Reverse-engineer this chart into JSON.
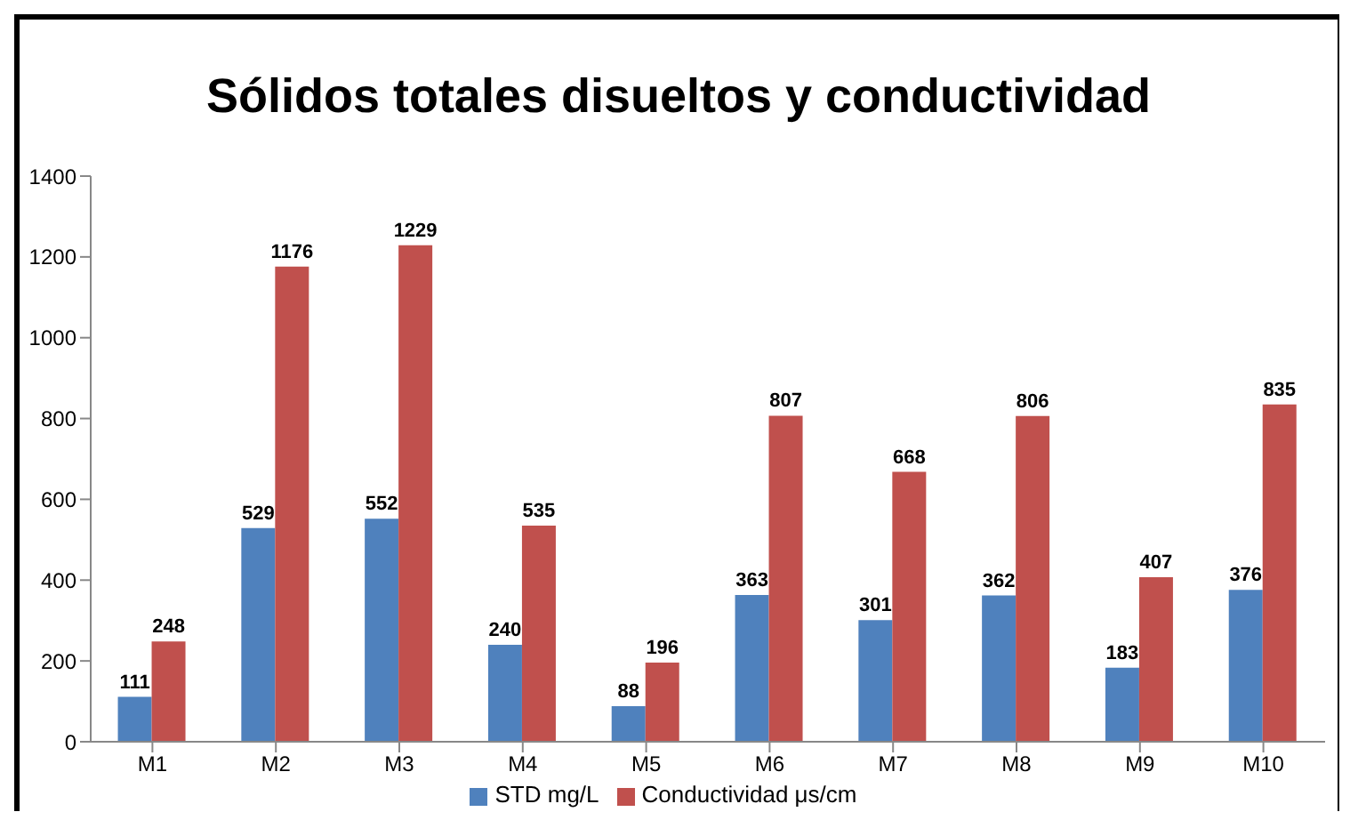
{
  "chart_data": {
    "type": "bar",
    "title": "Sólidos totales disueltos y conductividad",
    "categories": [
      "M1",
      "M2",
      "M3",
      "M4",
      "M5",
      "M6",
      "M7",
      "M8",
      "M9",
      "M10"
    ],
    "series": [
      {
        "name": "STD mg/L",
        "color": "#4f81bd",
        "values": [
          111,
          529,
          552,
          240,
          88,
          363,
          301,
          362,
          183,
          376
        ]
      },
      {
        "name": "Conductividad μs/cm",
        "color": "#c0504d",
        "values": [
          248,
          1176,
          1229,
          535,
          196,
          807,
          668,
          806,
          407,
          835
        ]
      }
    ],
    "ylim": [
      0,
      1400
    ],
    "yticks": [
      0,
      200,
      400,
      600,
      800,
      1000,
      1200,
      1400
    ],
    "grid": false,
    "legend": "bottom",
    "data_labels": true
  }
}
